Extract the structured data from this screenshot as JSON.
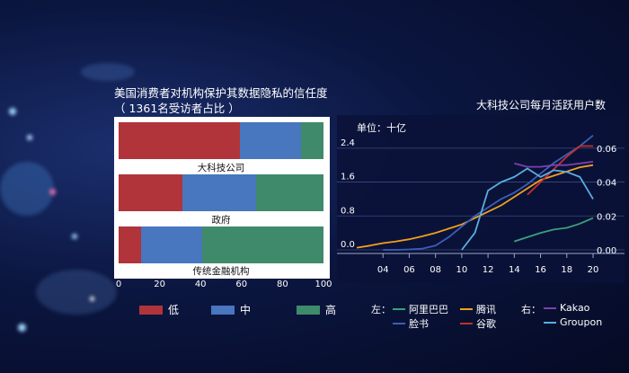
{
  "left_chart": {
    "title_line1": "美国消费者对机构保护其数据隐私的信任度",
    "title_line2": "（ 1361名受访者占比 ）",
    "x_ticks": [
      "0",
      "20",
      "40",
      "60",
      "80",
      "100"
    ],
    "legend": [
      {
        "label": "低",
        "color": "#b0343a"
      },
      {
        "label": "中",
        "color": "#4876bf"
      },
      {
        "label": "高",
        "color": "#3f8a6b"
      }
    ]
  },
  "right_chart": {
    "title": "大科技公司每月活跃用户数",
    "left_unit": "单位：十亿",
    "left_ticks": [
      "0.0",
      "0.8",
      "1.6",
      "2.4"
    ],
    "right_ticks": [
      "0.00",
      "0.02",
      "0.04",
      "0.06"
    ],
    "x_ticks": [
      "04",
      "06",
      "08",
      "10",
      "12",
      "14",
      "16",
      "18",
      "20"
    ],
    "legend_left_prefix": "左：",
    "legend_right_prefix": "右：",
    "legend": [
      {
        "label": "阿里巴巴",
        "color": "#3aa07a"
      },
      {
        "label": "腾讯",
        "color": "#f0a020"
      },
      {
        "label": "脸书",
        "color": "#3b5fb8"
      },
      {
        "label": "谷歌",
        "color": "#c0302c"
      },
      {
        "label": "Kakao",
        "color": "#7b3fb0"
      },
      {
        "label": "Groupon",
        "color": "#5aaee0"
      }
    ]
  },
  "chart_data": [
    {
      "type": "bar",
      "stacked": true,
      "orientation": "horizontal",
      "title": "美国消费者对机构保护其数据隐私的信任度（ 1361名受访者占比 ）",
      "categories": [
        "大科技公司",
        "政府",
        "传统金融机构"
      ],
      "series": [
        {
          "name": "低",
          "values": [
            59,
            31,
            11
          ]
        },
        {
          "name": "中",
          "values": [
            30,
            36,
            30
          ]
        },
        {
          "name": "高",
          "values": [
            11,
            33,
            59
          ]
        }
      ],
      "xlim": [
        0,
        100
      ]
    },
    {
      "type": "line",
      "title": "大科技公司每月活跃用户数",
      "ylabel": "单位：十亿",
      "ylim_left": [
        0,
        2.8
      ],
      "ylim_right": [
        0,
        0.07
      ],
      "xlim": [
        2002,
        2020
      ],
      "series": [
        {
          "name": "阿里巴巴",
          "axis": "left",
          "x": [
            2014,
            2015,
            2016,
            2017,
            2018,
            2019,
            2020
          ],
          "y": [
            0.2,
            0.3,
            0.4,
            0.48,
            0.52,
            0.62,
            0.75
          ]
        },
        {
          "name": "腾讯",
          "axis": "left",
          "x": [
            2002,
            2003,
            2004,
            2005,
            2006,
            2007,
            2008,
            2009,
            2010,
            2011,
            2012,
            2013,
            2014,
            2015,
            2016,
            2017,
            2018,
            2019,
            2020
          ],
          "y": [
            0.05,
            0.1,
            0.16,
            0.2,
            0.25,
            0.32,
            0.4,
            0.5,
            0.6,
            0.75,
            0.9,
            1.05,
            1.25,
            1.45,
            1.65,
            1.75,
            1.85,
            1.95,
            2.0
          ]
        },
        {
          "name": "脸书",
          "axis": "left",
          "x": [
            2004,
            2005,
            2006,
            2007,
            2008,
            2009,
            2010,
            2011,
            2012,
            2013,
            2014,
            2015,
            2016,
            2017,
            2018,
            2019,
            2020
          ],
          "y": [
            0.0,
            0.0,
            0.01,
            0.03,
            0.1,
            0.3,
            0.55,
            0.8,
            1.0,
            1.2,
            1.35,
            1.55,
            1.8,
            2.05,
            2.25,
            2.45,
            2.7
          ]
        },
        {
          "name": "谷歌",
          "axis": "left",
          "x": [
            2015,
            2016,
            2017,
            2018,
            2019,
            2020
          ],
          "y": [
            1.3,
            1.6,
            1.9,
            2.2,
            2.45,
            2.45
          ]
        },
        {
          "name": "Kakao",
          "axis": "right",
          "x": [
            2014,
            2015,
            2016,
            2017,
            2018,
            2019,
            2020
          ],
          "y": [
            0.051,
            0.049,
            0.049,
            0.05,
            0.05,
            0.051,
            0.052
          ]
        },
        {
          "name": "Groupon",
          "axis": "right",
          "x": [
            2010,
            2011,
            2012,
            2013,
            2014,
            2015,
            2016,
            2017,
            2018,
            2019,
            2020
          ],
          "y": [
            0.0,
            0.01,
            0.035,
            0.04,
            0.043,
            0.048,
            0.043,
            0.047,
            0.046,
            0.043,
            0.03
          ]
        }
      ]
    }
  ]
}
